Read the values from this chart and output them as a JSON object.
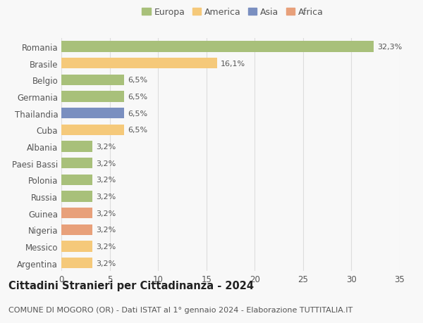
{
  "countries": [
    "Argentina",
    "Messico",
    "Nigeria",
    "Guinea",
    "Russia",
    "Polonia",
    "Paesi Bassi",
    "Albania",
    "Cuba",
    "Thailandia",
    "Germania",
    "Belgio",
    "Brasile",
    "Romania"
  ],
  "values": [
    3.2,
    3.2,
    3.2,
    3.2,
    3.2,
    3.2,
    3.2,
    3.2,
    6.5,
    6.5,
    6.5,
    6.5,
    16.1,
    32.3
  ],
  "colors": [
    "#f5c97a",
    "#f5c97a",
    "#e8a07a",
    "#e8a07a",
    "#a8c07a",
    "#a8c07a",
    "#a8c07a",
    "#a8c07a",
    "#f5c97a",
    "#7a8fc0",
    "#a8c07a",
    "#a8c07a",
    "#f5c97a",
    "#a8c07a"
  ],
  "labels": [
    "3,2%",
    "3,2%",
    "3,2%",
    "3,2%",
    "3,2%",
    "3,2%",
    "3,2%",
    "3,2%",
    "6,5%",
    "6,5%",
    "6,5%",
    "6,5%",
    "16,1%",
    "32,3%"
  ],
  "legend_labels": [
    "Europa",
    "America",
    "Asia",
    "Africa"
  ],
  "legend_colors": [
    "#a8c07a",
    "#f5c97a",
    "#7a8fc0",
    "#e8a07a"
  ],
  "title": "Cittadini Stranieri per Cittadinanza - 2024",
  "subtitle": "COMUNE DI MOGORO (OR) - Dati ISTAT al 1° gennaio 2024 - Elaborazione TUTTITALIA.IT",
  "xlim": [
    0,
    35
  ],
  "xticks": [
    0,
    5,
    10,
    15,
    20,
    25,
    30,
    35
  ],
  "background_color": "#f8f8f8",
  "grid_color": "#dddddd",
  "bar_height": 0.65,
  "title_fontsize": 10.5,
  "subtitle_fontsize": 8,
  "label_fontsize": 8,
  "tick_fontsize": 8.5,
  "legend_fontsize": 9
}
